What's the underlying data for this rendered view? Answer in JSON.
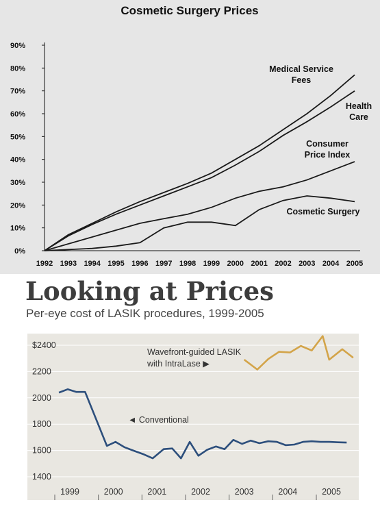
{
  "chart_data": [
    {
      "type": "line",
      "title": "Cosmetic Surgery Prices",
      "x": [
        "1992",
        "1993",
        "1994",
        "1995",
        "1996",
        "1997",
        "1998",
        "1999",
        "2000",
        "2001",
        "2002",
        "2003",
        "2004",
        "2005"
      ],
      "yticks": [
        "0%",
        "10%",
        "20%",
        "30%",
        "40%",
        "50%",
        "60%",
        "70%",
        "80%",
        "90%"
      ],
      "ylim": [
        0,
        90
      ],
      "series": [
        {
          "name": "Medical Service Fees",
          "label_lines": [
            "Medical Service",
            "Fees"
          ],
          "values": [
            0,
            7,
            12,
            17,
            21.5,
            25.5,
            29.5,
            34,
            40,
            46,
            53,
            60,
            68,
            77
          ]
        },
        {
          "name": "Health Care",
          "label_lines": [
            "Health",
            "Care"
          ],
          "values": [
            0,
            6.5,
            11.5,
            16,
            20,
            24,
            28,
            32,
            37.5,
            43.5,
            50.5,
            56.5,
            63,
            70
          ]
        },
        {
          "name": "Consumer Price Index",
          "label_lines": [
            "Consumer",
            "Price Index"
          ],
          "values": [
            0,
            3,
            6,
            9,
            12,
            14,
            16,
            19,
            23,
            26,
            28,
            31,
            35,
            39
          ]
        },
        {
          "name": "Cosmetic Surgery",
          "label_lines": [
            "Cosmetic Surgery"
          ],
          "values": [
            0,
            0.5,
            1,
            2,
            3.5,
            10,
            12.5,
            12.5,
            11,
            18,
            22,
            24,
            23,
            21.5
          ]
        }
      ]
    },
    {
      "type": "line",
      "title": "Looking at Prices",
      "subtitle": "Per-eye cost of LASIK procedures, 1999-2005",
      "x_ticks": [
        "1999",
        "2000",
        "2001",
        "2002",
        "2003",
        "2004",
        "2005"
      ],
      "yticks": [
        "1400",
        "1600",
        "1800",
        "2000",
        "2200",
        "$2400"
      ],
      "ylim": [
        1400,
        2400
      ],
      "series": [
        {
          "name": "Conventional",
          "label": "◄ Conventional",
          "color": "#2d4f7c",
          "x": [
            1998.75,
            1998.95,
            1999.15,
            1999.35,
            1999.6,
            1999.85,
            2000.05,
            2000.25,
            2000.45,
            2000.7,
            2000.9,
            2001.15,
            2001.35,
            2001.55,
            2001.75,
            2001.95,
            2002.15,
            2002.35,
            2002.55,
            2002.75,
            2002.95,
            2003.15,
            2003.35,
            2003.55,
            2003.75,
            2003.95,
            2004.15,
            2004.35,
            2004.55,
            2004.75,
            2004.95,
            2005.15,
            2005.35
          ],
          "values": [
            2040,
            2065,
            2045,
            2045,
            1840,
            1635,
            1665,
            1625,
            1600,
            1570,
            1540,
            1610,
            1615,
            1540,
            1665,
            1560,
            1605,
            1630,
            1610,
            1680,
            1650,
            1675,
            1655,
            1670,
            1665,
            1640,
            1645,
            1665,
            1670,
            1665,
            1665,
            1662,
            1660
          ]
        },
        {
          "name": "Wavefront-guided LASIK with IntraLase",
          "label_lines": [
            "Wavefront-guided LASIK",
            "with IntraLase ▶"
          ],
          "color": "#d3a449",
          "x": [
            2003.0,
            2003.3,
            2003.55,
            2003.8,
            2004.05,
            2004.3,
            2004.55,
            2004.8,
            2004.95,
            2005.25,
            2005.5
          ],
          "values": [
            2290,
            2215,
            2295,
            2350,
            2345,
            2395,
            2360,
            2470,
            2290,
            2370,
            2305
          ]
        }
      ]
    }
  ]
}
